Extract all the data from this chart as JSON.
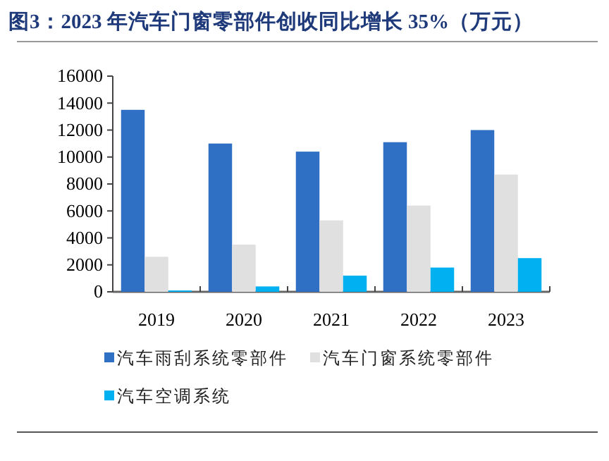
{
  "chart_data": {
    "type": "bar",
    "title": "图3：2023 年汽车门窗零部件创收同比增长 35%（万元）",
    "categories": [
      "2019",
      "2020",
      "2021",
      "2022",
      "2023"
    ],
    "series": [
      {
        "name": "汽车雨刮系统零部件",
        "color": "#3070c4",
        "values": [
          13500,
          11000,
          10400,
          11100,
          12000
        ]
      },
      {
        "name": "汽车门窗系统零部件",
        "color": "#e0e0e0",
        "values": [
          2600,
          3500,
          5300,
          6400,
          8700
        ]
      },
      {
        "name": "汽车空调系统",
        "color": "#00b0f0",
        "values": [
          100,
          400,
          1200,
          1800,
          2500
        ]
      }
    ],
    "ylim": [
      0,
      16000
    ],
    "yticks": [
      0,
      2000,
      4000,
      6000,
      8000,
      10000,
      12000,
      14000,
      16000
    ],
    "grid": false,
    "legend": "bottom"
  }
}
